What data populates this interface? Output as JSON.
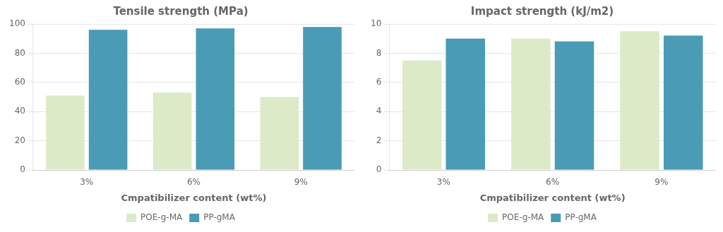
{
  "chart_data": [
    {
      "type": "bar",
      "title": "Tensile strength (MPa)",
      "categories": [
        "3%",
        "6%",
        "9%"
      ],
      "series": [
        {
          "name": "POE-g-MA",
          "color": "#ddeac8",
          "values": [
            51,
            53,
            50
          ]
        },
        {
          "name": "PP-gMA",
          "color": "#4a9bb5",
          "values": [
            96,
            97,
            98
          ]
        }
      ],
      "xlabel": "Cmpatibilizer content (wt%)",
      "ylim": [
        0,
        100
      ],
      "yticks": [
        0,
        20,
        40,
        60,
        80,
        100
      ],
      "grid": true,
      "legend": "bottom"
    },
    {
      "type": "bar",
      "title": "Impact strength (kJ/m2)",
      "categories": [
        "3%",
        "6%",
        "9%"
      ],
      "series": [
        {
          "name": "POE-g-MA",
          "color": "#ddeac8",
          "values": [
            7.5,
            9.0,
            9.5
          ]
        },
        {
          "name": "PP-gMA",
          "color": "#4a9bb5",
          "values": [
            9.0,
            8.8,
            9.2
          ]
        }
      ],
      "xlabel": "Cmpatibilizer content (wt%)",
      "ylim": [
        0,
        10
      ],
      "yticks": [
        0,
        2,
        4,
        6,
        8,
        10
      ],
      "grid": true,
      "legend": "bottom"
    }
  ]
}
